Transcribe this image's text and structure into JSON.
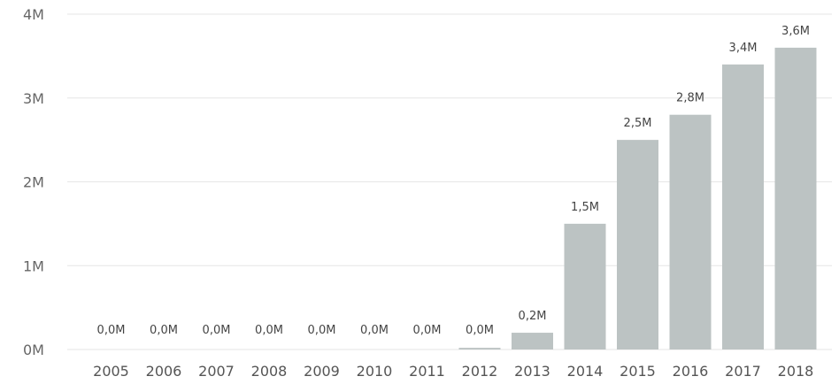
{
  "chart_data": {
    "type": "bar",
    "categories": [
      "2005",
      "2006",
      "2007",
      "2008",
      "2009",
      "2010",
      "2011",
      "2012",
      "2013",
      "2014",
      "2015",
      "2016",
      "2017",
      "2018"
    ],
    "values": [
      0,
      0,
      0,
      0,
      0,
      0,
      0,
      0.02,
      0.2,
      1.5,
      2.5,
      2.8,
      3.4,
      3.6
    ],
    "data_labels": [
      "0,0M",
      "0,0M",
      "0,0M",
      "0,0M",
      "0,0M",
      "0,0M",
      "0,0M",
      "0,0M",
      "0,2M",
      "1,5M",
      "2,5M",
      "2,8M",
      "3,4M",
      "3,6M"
    ],
    "y_ticks": [
      {
        "value": 0,
        "label": "0M"
      },
      {
        "value": 1,
        "label": "1M"
      },
      {
        "value": 2,
        "label": "2M"
      },
      {
        "value": 3,
        "label": "3M"
      },
      {
        "value": 4,
        "label": "4M"
      }
    ],
    "ylim": [
      0,
      4
    ],
    "title": "",
    "xlabel": "",
    "ylabel": "",
    "grid": true,
    "legend": "none",
    "bar_color": "#bcc3c3"
  }
}
